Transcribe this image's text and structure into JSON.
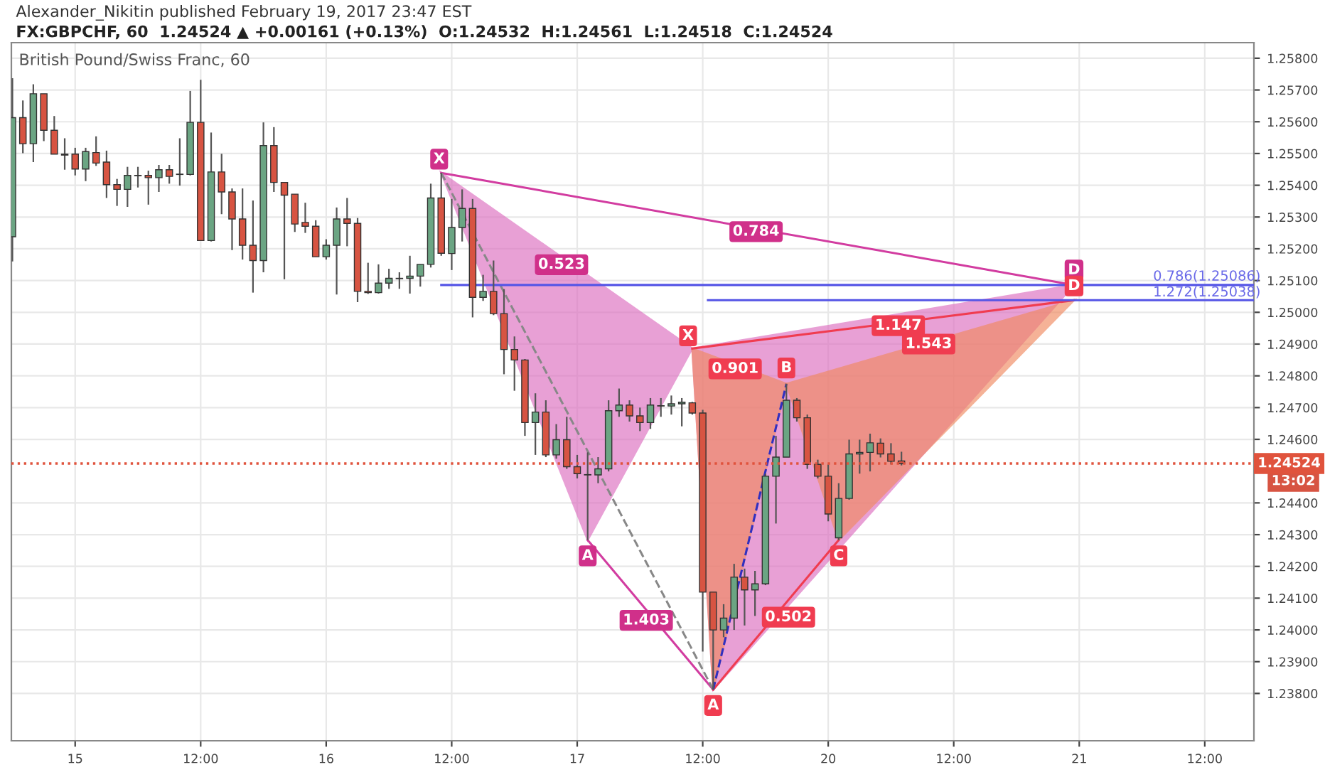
{
  "chart_data": {
    "type": "candlestick",
    "title": "Alexander_Nikitin published February 19, 2017 23:47 EST",
    "subtitle": "FX:GBPCHF, 60  1.24524 ▲ +0.00161 (+0.13%)  O:1.24532  H:1.24561  L:1.24518  C:1.24524",
    "categories": [
      null,
      null,
      null,
      null,
      null,
      null,
      "15",
      null,
      null,
      null,
      null,
      null,
      null,
      null,
      null,
      null,
      null,
      null,
      "12:00",
      null,
      null,
      null,
      null,
      null,
      null,
      null,
      null,
      null,
      null,
      null,
      "16",
      null,
      null,
      null,
      null,
      null,
      null,
      null,
      null,
      null,
      null,
      null,
      "12:00",
      null,
      null,
      null,
      null,
      null,
      null,
      null,
      null,
      null,
      null,
      null,
      "17",
      null,
      null,
      null,
      null,
      null,
      null,
      null,
      null,
      null,
      null,
      null,
      "12:00",
      null,
      null,
      null,
      null,
      null,
      null,
      null,
      null,
      null,
      null,
      null,
      "20",
      null,
      null,
      null,
      null,
      null,
      null,
      null,
      null,
      null,
      null,
      null,
      "12:00",
      null,
      null,
      null,
      null,
      null,
      null,
      null,
      null,
      null,
      null,
      null,
      "21",
      null,
      null,
      null,
      null,
      null,
      null,
      null,
      null,
      null,
      null,
      null,
      "12:00",
      null,
      null,
      null,
      null
    ],
    "ohlc": [
      [
        1.25238,
        1.25737,
        1.2516,
        1.25613
      ],
      [
        1.25613,
        1.25667,
        1.25501,
        1.25531
      ],
      [
        1.25531,
        1.25718,
        1.25473,
        1.25688
      ],
      [
        1.25688,
        1.25688,
        1.25539,
        1.25573
      ],
      [
        1.25573,
        1.25618,
        1.25498,
        1.25498
      ],
      [
        1.25498,
        1.25548,
        1.25449,
        1.25495
      ],
      [
        1.25498,
        1.25518,
        1.25431,
        1.25451
      ],
      [
        1.25451,
        1.25518,
        1.25413,
        1.25506
      ],
      [
        1.25503,
        1.25554,
        1.25461,
        1.2547
      ],
      [
        1.25473,
        1.25509,
        1.2536,
        1.25402
      ],
      [
        1.25402,
        1.2542,
        1.25335,
        1.25387
      ],
      [
        1.25387,
        1.25458,
        1.25332,
        1.25431
      ],
      [
        1.2543,
        1.25458,
        1.25393,
        1.25431
      ],
      [
        1.25431,
        1.25446,
        1.25339,
        1.25424
      ],
      [
        1.25424,
        1.25464,
        1.25379,
        1.25449
      ],
      [
        1.25449,
        1.25464,
        1.25405,
        1.25428
      ],
      [
        1.25434,
        1.25548,
        1.25399,
        1.25435
      ],
      [
        1.25434,
        1.25697,
        1.25431,
        1.25598
      ],
      [
        1.25598,
        1.25732,
        1.25226,
        1.25226
      ],
      [
        1.25226,
        1.25566,
        1.25223,
        1.25442
      ],
      [
        1.25442,
        1.25499,
        1.25309,
        1.25379
      ],
      [
        1.25379,
        1.2539,
        1.25196,
        1.25294
      ],
      [
        1.25294,
        1.2539,
        1.25166,
        1.25211
      ],
      [
        1.25211,
        1.25352,
        1.25062,
        1.25163
      ],
      [
        1.25163,
        1.25598,
        1.25126,
        1.25525
      ],
      [
        1.25525,
        1.25583,
        1.25379,
        1.25409
      ],
      [
        1.25409,
        1.25409,
        1.25104,
        1.25369
      ],
      [
        1.25372,
        1.25372,
        1.25253,
        1.25278
      ],
      [
        1.25283,
        1.25345,
        1.2525,
        1.25271
      ],
      [
        1.25271,
        1.2529,
        1.25175,
        1.25175
      ],
      [
        1.25175,
        1.2523,
        1.25166,
        1.25211
      ],
      [
        1.25211,
        1.2533,
        1.25056,
        1.25294
      ],
      [
        1.25294,
        1.2536,
        1.25208,
        1.2528
      ],
      [
        1.2528,
        1.25297,
        1.25032,
        1.25066
      ],
      [
        1.25066,
        1.25156,
        1.25058,
        1.25062
      ],
      [
        1.25062,
        1.25151,
        1.25059,
        1.25092
      ],
      [
        1.25092,
        1.25137,
        1.25074,
        1.25107
      ],
      [
        1.25106,
        1.25126,
        1.25074,
        1.25107
      ],
      [
        1.25107,
        1.25178,
        1.25059,
        1.25114
      ],
      [
        1.25114,
        1.25151,
        1.25081,
        1.25151
      ],
      [
        1.25151,
        1.25405,
        1.25141,
        1.2536
      ],
      [
        1.2536,
        1.25439,
        1.25178,
        1.25186
      ],
      [
        1.25185,
        1.25357,
        1.25133,
        1.25267
      ],
      [
        1.25267,
        1.25387,
        1.25223,
        1.25327
      ],
      [
        1.25327,
        1.25357,
        1.24984,
        1.25047
      ],
      [
        1.25047,
        1.25118,
        1.25036,
        1.25066
      ],
      [
        1.25066,
        1.25163,
        1.24991,
        1.24996
      ],
      [
        1.24996,
        1.25073,
        1.24805,
        1.24883
      ],
      [
        1.24883,
        1.24924,
        1.24753,
        1.2485
      ],
      [
        1.2485,
        1.24853,
        1.24611,
        1.24653
      ],
      [
        1.24653,
        1.24745,
        1.24551,
        1.24686
      ],
      [
        1.24686,
        1.24723,
        1.24544,
        1.24551
      ],
      [
        1.24551,
        1.24648,
        1.24539,
        1.24599
      ],
      [
        1.24599,
        1.24671,
        1.24507,
        1.24514
      ],
      [
        1.24514,
        1.24551,
        1.24477,
        1.24492
      ],
      [
        1.24489,
        1.24559,
        1.24283,
        1.24488
      ],
      [
        1.24488,
        1.24544,
        1.24462,
        1.24507
      ],
      [
        1.24507,
        1.24723,
        1.24499,
        1.2469
      ],
      [
        1.2469,
        1.2476,
        1.24671,
        1.24708
      ],
      [
        1.24708,
        1.24723,
        1.24656,
        1.24674
      ],
      [
        1.24674,
        1.247,
        1.24626,
        1.24653
      ],
      [
        1.24653,
        1.2473,
        1.24633,
        1.24708
      ],
      [
        1.24706,
        1.2473,
        1.24671,
        1.24705
      ],
      [
        1.24705,
        1.24738,
        1.24678,
        1.24712
      ],
      [
        1.24712,
        1.2473,
        1.24641,
        1.24717
      ],
      [
        1.24715,
        1.24718,
        1.24678,
        1.24683
      ],
      [
        1.24683,
        1.24693,
        1.23932,
        1.24119
      ],
      [
        1.24119,
        1.24119,
        1.23812,
        1.24
      ],
      [
        1.24,
        1.24081,
        1.23977,
        1.24037
      ],
      [
        1.24037,
        1.24208,
        1.24,
        1.24166
      ],
      [
        1.24166,
        1.24193,
        1.24014,
        1.24126
      ],
      [
        1.24126,
        1.24186,
        1.24044,
        1.24145
      ],
      [
        1.24145,
        1.24492,
        1.24141,
        1.24484
      ],
      [
        1.24484,
        1.24611,
        1.24335,
        1.24544
      ],
      [
        1.24544,
        1.24775,
        1.24544,
        1.24723
      ],
      [
        1.24723,
        1.2473,
        1.24656,
        1.24668
      ],
      [
        1.24668,
        1.24678,
        1.24507,
        1.24521
      ],
      [
        1.24521,
        1.24536,
        1.24477,
        1.24484
      ],
      [
        1.24484,
        1.24521,
        1.24342,
        1.24365
      ],
      [
        1.2429,
        1.24462,
        1.24283,
        1.24414
      ],
      [
        1.24414,
        1.24599,
        1.2441,
        1.24554
      ],
      [
        1.24554,
        1.24599,
        1.24492,
        1.24559
      ],
      [
        1.24559,
        1.24618,
        1.24499,
        1.24589
      ],
      [
        1.24588,
        1.24603,
        1.24543,
        1.24554
      ],
      [
        1.24554,
        1.24588,
        1.24521,
        1.24531
      ],
      [
        1.24532,
        1.24561,
        1.24518,
        1.24524
      ],
      null,
      null,
      null,
      null,
      null,
      null,
      null,
      null,
      null,
      null,
      null,
      null,
      null,
      null,
      null,
      null,
      null,
      null,
      null,
      null,
      null,
      null,
      null,
      null,
      null,
      null,
      null,
      null,
      null,
      null,
      null,
      null,
      null
    ],
    "colors": [
      "#6ba583",
      "#d75442",
      "#6ba583",
      "#d75442",
      "#d75442",
      "#d75442",
      "#d75442",
      "#6ba583",
      "#d75442",
      "#d75442",
      "#d75442",
      "#6ba583",
      "#6ba583",
      "#d75442",
      "#6ba583",
      "#d75442",
      "#6ba583",
      "#6ba583",
      "#d75442",
      "#6ba583",
      "#d75442",
      "#d75442",
      "#d75442",
      "#d75442",
      "#6ba583",
      "#d75442",
      "#d75442",
      "#d75442",
      "#d75442",
      "#d75442",
      "#6ba583",
      "#6ba583",
      "#d75442",
      "#d75442",
      "#d75442",
      "#6ba583",
      "#6ba583",
      "#6ba583",
      "#6ba583",
      "#6ba583",
      "#6ba583",
      "#d75442",
      "#6ba583",
      "#6ba583",
      "#d75442",
      "#6ba583",
      "#d75442",
      "#d75442",
      "#d75442",
      "#d75442",
      "#6ba583",
      "#d75442",
      "#6ba583",
      "#d75442",
      "#d75442",
      "#d75442",
      "#6ba583",
      "#6ba583",
      "#6ba583",
      "#d75442",
      "#d75442",
      "#6ba583",
      "#d75442",
      "#6ba583",
      "#6ba583",
      "#d75442",
      "#d75442",
      "#d75442",
      "#6ba583",
      "#6ba583",
      "#d75442",
      "#6ba583",
      "#6ba583",
      "#6ba583",
      "#6ba583",
      "#d75442",
      "#d75442",
      "#d75442",
      "#d75442",
      "#6ba583",
      "#6ba583",
      "#6ba583",
      "#6ba583",
      "#d75442",
      "#d75442",
      "#d75442",
      null,
      null,
      null,
      null,
      null,
      null,
      null,
      null,
      null,
      null,
      null,
      null,
      null,
      null,
      null,
      null,
      null,
      null,
      null,
      null,
      null,
      null,
      null,
      null,
      null,
      null,
      null,
      null,
      null,
      null,
      null,
      null,
      null
    ],
    "ref_lines": [
      {
        "axis": "y",
        "value": 1.24524,
        "label": "1.24524",
        "color": "#e0533d",
        "line_style": "dotted"
      }
    ],
    "annotations": [
      "British Pound/Swiss Franc, 60",
      "13:02",
      "X",
      {
        "text": "A",
        "y": 1.24283
      },
      "X",
      {
        "text": "A",
        "y": 1.23812
      },
      {
        "text": "B",
        "y": 1.24775
      },
      {
        "text": "C",
        "y": 1.24283
      },
      "D",
      "D",
      "0.523",
      "0.784",
      "1.403",
      "0.901",
      "0.502",
      "1.147",
      "1.543",
      "0.786(1.25086)",
      "1.272(1.25038)"
    ],
    "ylim": [
      1.23651,
      1.25849
    ],
    "yticks": [
      {
        "value": 1.238,
        "label": "1.23800"
      },
      {
        "value": 1.239,
        "label": "1.23900"
      },
      {
        "value": 1.24,
        "label": "1.24000"
      },
      {
        "value": 1.241,
        "label": "1.24100"
      },
      {
        "value": 1.242,
        "label": "1.24200"
      },
      {
        "value": 1.243,
        "label": "1.24300"
      },
      {
        "value": 1.244,
        "label": "1.24400"
      },
      {
        "value": 1.246,
        "label": "1.24600"
      },
      {
        "value": 1.247,
        "label": "1.24700"
      },
      {
        "value": 1.248,
        "label": "1.24800"
      },
      {
        "value": 1.249,
        "label": "1.24900"
      },
      {
        "value": 1.25,
        "label": "1.25000"
      },
      {
        "value": 1.251,
        "label": "1.25100"
      },
      {
        "value": 1.252,
        "label": "1.25200"
      },
      {
        "value": 1.253,
        "label": "1.25300"
      },
      {
        "value": 1.254,
        "label": "1.25400"
      },
      {
        "value": 1.255,
        "label": "1.25500"
      },
      {
        "value": 1.256,
        "label": "1.25600"
      },
      {
        "value": 1.257,
        "label": "1.25700"
      },
      {
        "value": 1.258,
        "label": "1.25800"
      }
    ],
    "grid": true
  }
}
